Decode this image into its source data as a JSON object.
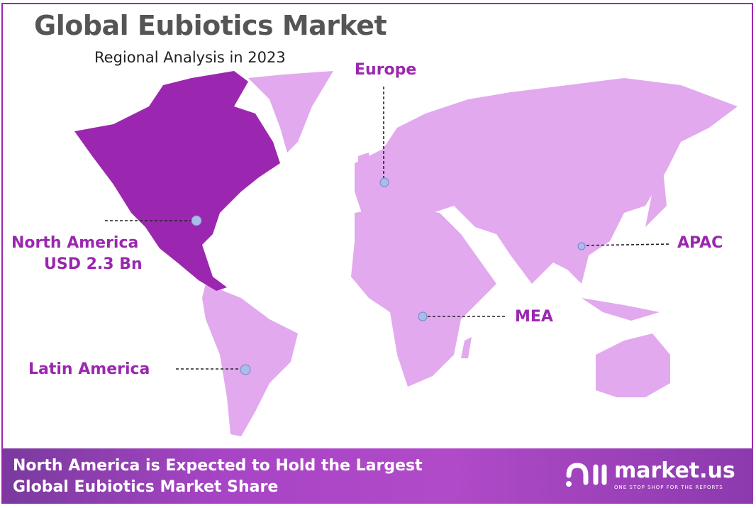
{
  "header": {
    "title": "Global Eubiotics Market",
    "subtitle": "Regional Analysis in 2023"
  },
  "regions": [
    {
      "name": "North America",
      "value": "USD 2.3 Bn",
      "highlighted": true
    },
    {
      "name": "Europe"
    },
    {
      "name": "APAC"
    },
    {
      "name": "MEA"
    },
    {
      "name": "Latin America"
    }
  ],
  "colors": {
    "highlight": "#9b27b0",
    "other": "#e2a9ee",
    "label": "#9b27b0",
    "marker": "#a9bde8"
  },
  "banner": {
    "line1": "North America is Expected to Hold the Largest",
    "line2": "Global Eubiotics Market Share"
  },
  "logo": {
    "name": "market.us",
    "tagline": "ONE STOP SHOP FOR THE REPORTS"
  }
}
